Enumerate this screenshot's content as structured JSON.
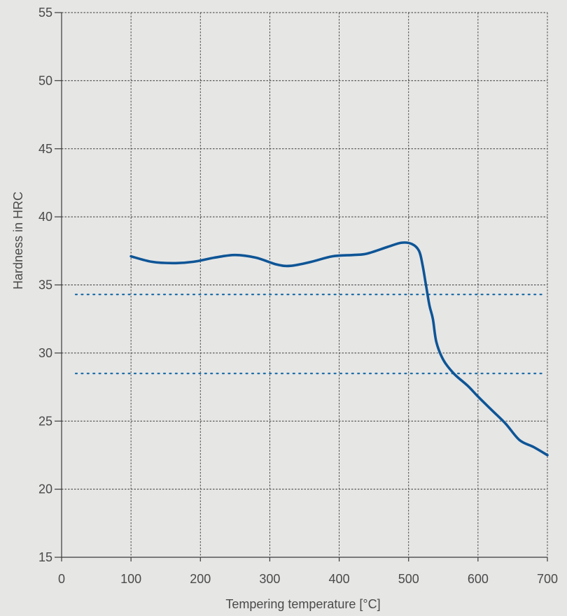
{
  "chart_data": {
    "type": "line",
    "title": "",
    "xlabel": "Tempering temperature [°C]",
    "ylabel": "Hardness in HRC",
    "xlim": [
      0,
      700
    ],
    "ylim": [
      15,
      55
    ],
    "xticks": [
      0,
      100,
      200,
      300,
      400,
      500,
      600,
      700
    ],
    "yticks": [
      15,
      20,
      25,
      30,
      35,
      40,
      45,
      50,
      55
    ],
    "grid": true,
    "legend": "none",
    "colors": {
      "curve": "#0e5596",
      "reference": "#1f6fa8",
      "grid": "#3a3a3a",
      "text": "#4a4a4a",
      "background": "#e6e6e5"
    },
    "series": [
      {
        "x": [
          100,
          130,
          160,
          190,
          220,
          250,
          280,
          310,
          330,
          360,
          390,
          420,
          440,
          470,
          490,
          505,
          515,
          520,
          525,
          530,
          535,
          540,
          550,
          565,
          585,
          600,
          620,
          640,
          660,
          680,
          700
        ],
        "y": [
          37.1,
          36.7,
          36.6,
          36.7,
          37.0,
          37.2,
          37.0,
          36.5,
          36.4,
          36.7,
          37.1,
          37.2,
          37.3,
          37.8,
          38.1,
          38.0,
          37.5,
          36.5,
          35.0,
          33.5,
          32.5,
          30.8,
          29.5,
          28.5,
          27.6,
          26.8,
          25.8,
          24.8,
          23.6,
          23.1,
          22.5
        ]
      }
    ],
    "reference_lines": [
      {
        "y": 34.3,
        "style": "dotted"
      },
      {
        "y": 28.5,
        "style": "dotted"
      }
    ]
  }
}
